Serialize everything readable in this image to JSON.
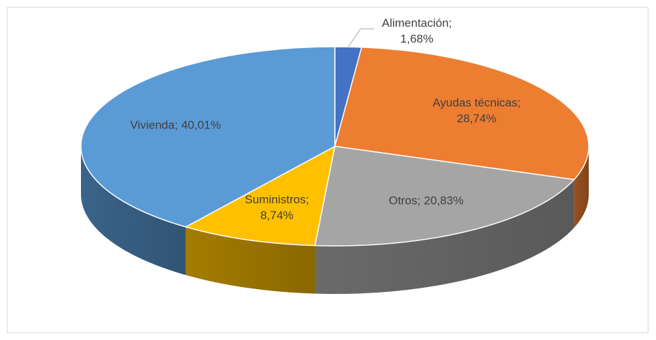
{
  "chart_data": {
    "type": "pie3d",
    "categories": [
      "Alimentación;",
      "Ayudas técnicas;",
      "Otros;",
      "Suministros;",
      "Vivienda;"
    ],
    "values": [
      1.68,
      28.74,
      20.83,
      8.74,
      40.01
    ],
    "value_labels": [
      "1,68%",
      "28,74%",
      "20,83%",
      "8,74%",
      "40,01%"
    ],
    "colors": [
      "#4472c4",
      "#ed7d31",
      "#a5a5a5",
      "#ffc000",
      "#5b9bd5"
    ]
  }
}
